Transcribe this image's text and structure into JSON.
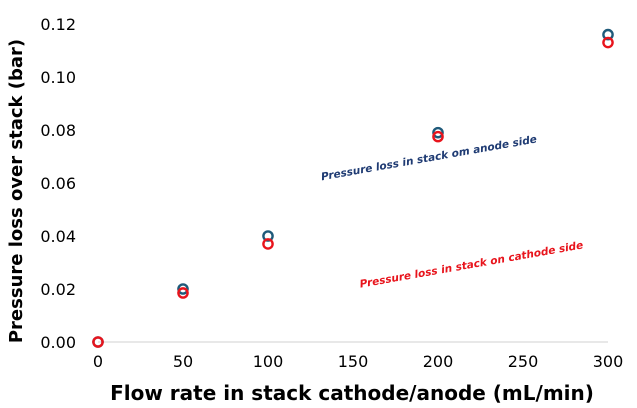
{
  "chart_data": {
    "type": "scatter",
    "title": "",
    "xlabel": "Flow rate in stack cathode/anode (mL/min)",
    "ylabel": "Pressure loss over stack (bar)",
    "xlim": [
      0,
      300
    ],
    "ylim": [
      0,
      0.12
    ],
    "x_ticks": [
      0,
      50,
      100,
      150,
      200,
      250,
      300
    ],
    "y_ticks": [
      0.0,
      0.02,
      0.04,
      0.06,
      0.08,
      0.1,
      0.12
    ],
    "x_tick_labels": [
      "0",
      "50",
      "100",
      "150",
      "200",
      "250",
      "300"
    ],
    "y_tick_labels": [
      "0.00",
      "0.02",
      "0.04",
      "0.06",
      "0.08",
      "0.10",
      "0.12"
    ],
    "grid": false,
    "legend": "none",
    "series": [
      {
        "key": "anode",
        "color": "#1f5a7a",
        "marker": "open-circle",
        "x": [
          0,
          50,
          100,
          200,
          300
        ],
        "y": [
          0.0,
          0.02,
          0.04,
          0.079,
          0.116
        ]
      },
      {
        "key": "cathode",
        "color": "#e8141c",
        "marker": "open-circle",
        "x": [
          0,
          50,
          100,
          200,
          300
        ],
        "y": [
          0.0,
          0.0185,
          0.037,
          0.0775,
          0.113
        ]
      }
    ],
    "annotations": [
      {
        "text": "Pressure loss in stack om anode side",
        "color": "#1f3b73",
        "x": 195,
        "y": 0.0795
      },
      {
        "text": "Pressure loss in stack on cathode side",
        "color": "#e8141c",
        "x": 220,
        "y": 0.037
      }
    ]
  }
}
